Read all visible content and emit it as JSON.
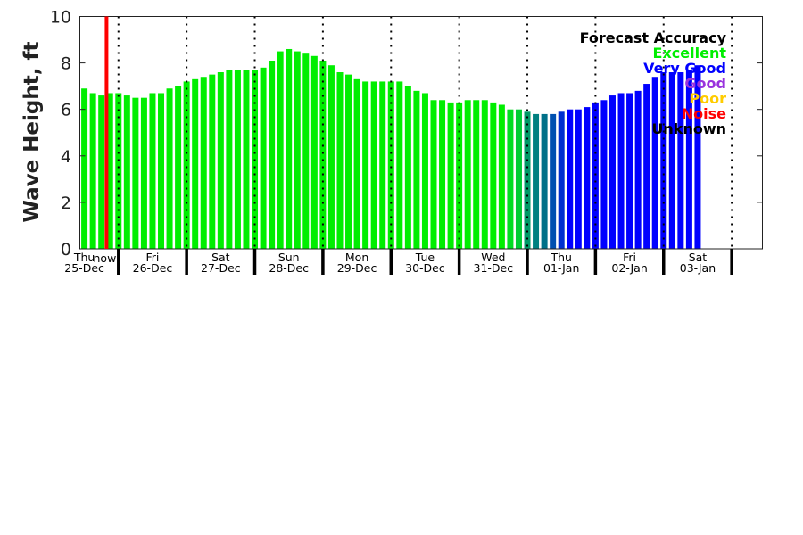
{
  "chart_data": {
    "type": "bar",
    "title": "",
    "xlabel": "",
    "ylabel": "Wave Height, ft",
    "ylim": [
      0,
      10
    ],
    "yticks": [
      "0",
      "2",
      "4",
      "6",
      "8",
      "10"
    ],
    "x_unit": "hours since Thu 25-Dec 00:00",
    "xlim": [
      10.4,
      250.8
    ],
    "bar_interval_hours": 3,
    "first_bar_hour": 12,
    "values": [
      6.9,
      6.7,
      6.6,
      6.7,
      6.7,
      6.6,
      6.5,
      6.5,
      6.7,
      6.7,
      6.9,
      7.0,
      7.2,
      7.3,
      7.4,
      7.5,
      7.6,
      7.7,
      7.7,
      7.7,
      7.7,
      7.8,
      8.1,
      8.5,
      8.6,
      8.5,
      8.4,
      8.3,
      8.1,
      7.9,
      7.6,
      7.5,
      7.3,
      7.2,
      7.2,
      7.2,
      7.2,
      7.2,
      7.0,
      6.8,
      6.7,
      6.4,
      6.4,
      6.3,
      6.3,
      6.4,
      6.4,
      6.4,
      6.3,
      6.2,
      6.0,
      6.0,
      5.9,
      5.8,
      5.8,
      5.8,
      5.9,
      6.0,
      6.0,
      6.1,
      6.3,
      6.4,
      6.6,
      6.7,
      6.7,
      6.8,
      7.1,
      7.4,
      7.6,
      7.6,
      7.6,
      7.7,
      7.9
    ],
    "bar_colors": [
      "#00ee00",
      "#00ee00",
      "#00ee00",
      "#00ee00",
      "#00ee00",
      "#00ee00",
      "#00ee00",
      "#00ee00",
      "#00ee00",
      "#00ee00",
      "#00ee00",
      "#00ee00",
      "#00ee00",
      "#00ee00",
      "#00ee00",
      "#00ee00",
      "#00ee00",
      "#00ee00",
      "#00ee00",
      "#00ee00",
      "#00ee00",
      "#00ee00",
      "#00ee00",
      "#00ee00",
      "#00ee00",
      "#00ee00",
      "#00ee00",
      "#00ee00",
      "#00ee00",
      "#00ee00",
      "#00ee00",
      "#00ee00",
      "#00ee00",
      "#00ee00",
      "#00ee00",
      "#00ee00",
      "#00ee00",
      "#00ee00",
      "#00ee00",
      "#00ee00",
      "#00ee00",
      "#00ee00",
      "#00ee00",
      "#00ee00",
      "#00ee00",
      "#00ee00",
      "#00ee00",
      "#00ee00",
      "#00ee00",
      "#00ee00",
      "#00dd22",
      "#00cc33",
      "#009966",
      "#008080",
      "#007088",
      "#0050b0",
      "#0030d0",
      "#0000ff",
      "#0000ff",
      "#0000ff",
      "#0000ff",
      "#0000ff",
      "#0000ff",
      "#0000ff",
      "#0000ff",
      "#0000ff",
      "#0000ff",
      "#0000ff",
      "#0000ff",
      "#0000ff",
      "#0000ff",
      "#0000ff",
      "#0000ff"
    ],
    "days": [
      {
        "day": "Thu",
        "date": "25-Dec"
      },
      {
        "day": "Fri",
        "date": "26-Dec"
      },
      {
        "day": "Sat",
        "date": "27-Dec"
      },
      {
        "day": "Sun",
        "date": "28-Dec"
      },
      {
        "day": "Mon",
        "date": "29-Dec"
      },
      {
        "day": "Tue",
        "date": "30-Dec"
      },
      {
        "day": "Wed",
        "date": "31-Dec"
      },
      {
        "day": "Thu",
        "date": "01-Jan"
      },
      {
        "day": "Fri",
        "date": "02-Jan"
      },
      {
        "day": "Sat",
        "date": "03-Jan"
      }
    ],
    "now": {
      "label": "now",
      "hour": 19.8,
      "color": "#ff0000"
    },
    "legend": {
      "placement": "top-right",
      "title": "Forecast Accuracy",
      "entries": [
        {
          "label": "Excellent",
          "color": "#00ee00"
        },
        {
          "label": "Very Good",
          "color": "#0000ff"
        },
        {
          "label": "Good",
          "color": "#9933dd"
        },
        {
          "label": "Poor",
          "color": "#ffcc00"
        },
        {
          "label": "Noise",
          "color": "#ff0000"
        },
        {
          "label": "Unknown",
          "color": "#000000"
        }
      ]
    }
  }
}
